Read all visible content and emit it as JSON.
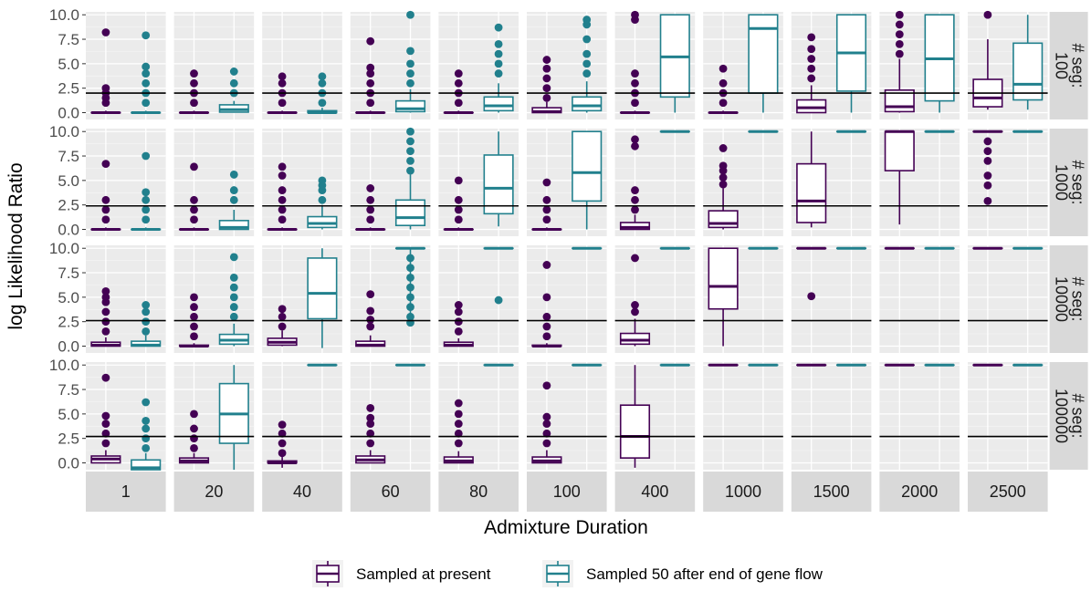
{
  "chart_data": {
    "type": "boxplot",
    "xlabel": "Admixture Duration",
    "ylabel": "log Likelihood Ratio",
    "ylim": [
      -0.7,
      10.3
    ],
    "yticks": [
      "0.0",
      "2.5",
      "5.0",
      "7.5",
      "10.0"
    ],
    "ytick_values": [
      0,
      2.5,
      5,
      7.5,
      10
    ],
    "panels_x": [
      "1",
      "20",
      "40",
      "60",
      "80",
      "100",
      "400",
      "1000",
      "1500",
      "2000",
      "2500"
    ],
    "panels_y": [
      "# seg:\n100",
      "# seg:\n1000",
      "# seg:\n10000",
      "# seg:\n100000"
    ],
    "grid": true,
    "legend_position": "bottom",
    "series": [
      {
        "name": "Sampled at present",
        "color": "#440154"
      },
      {
        "name": "Sampled 50 after end of gene flow",
        "color": "#21808d"
      }
    ],
    "thresholds": [
      2.0,
      2.4,
      2.6,
      2.7
    ],
    "boxes": [
      [
        [
          [
            0,
            0,
            0,
            0,
            0.2,
            [
              1,
              1.5,
              2,
              2.5,
              8.2
            ]
          ],
          [
            0,
            0,
            0,
            0,
            0.2,
            [
              1,
              2,
              3,
              4,
              4.7,
              7.9
            ]
          ]
        ],
        [
          [
            0,
            0,
            0,
            0,
            0.2,
            [
              1,
              2,
              3,
              4
            ]
          ],
          [
            0,
            0.05,
            0.3,
            0.8,
            1.2,
            [
              2,
              3,
              4.2
            ]
          ]
        ],
        [
          [
            0,
            0,
            0,
            0,
            0.2,
            [
              1,
              2,
              3,
              3.7
            ]
          ],
          [
            0,
            0,
            0,
            0.2,
            0.5,
            [
              1,
              2,
              3,
              3.7
            ]
          ]
        ],
        [
          [
            0,
            0,
            0,
            0,
            0.2,
            [
              1,
              2,
              3,
              4,
              4.6,
              7.3
            ]
          ],
          [
            0,
            0.1,
            0.4,
            1.2,
            2.4,
            [
              3,
              4,
              5,
              6.3,
              10
            ]
          ]
        ],
        [
          [
            0,
            0,
            0,
            0,
            0.2,
            [
              1,
              2,
              3,
              4
            ]
          ],
          [
            0,
            0.2,
            0.7,
            1.6,
            3,
            [
              4,
              5,
              6,
              7,
              8.7
            ]
          ]
        ],
        [
          [
            0,
            0,
            0.1,
            0.5,
            1.1,
            [
              1.5,
              2.5,
              3.5,
              4.5,
              5.4
            ]
          ],
          [
            0,
            0.2,
            0.7,
            1.6,
            3.2,
            [
              4,
              5,
              6,
              7.5,
              9,
              9.5
            ]
          ]
        ],
        [
          [
            0,
            0,
            0,
            0,
            0.2,
            [
              1,
              2,
              3,
              4,
              9.5,
              10
            ]
          ],
          [
            0,
            1.6,
            5.7,
            10,
            10,
            []
          ]
        ],
        [
          [
            0,
            0,
            0,
            0,
            0.2,
            [
              1,
              2,
              3,
              4.5
            ]
          ],
          [
            0,
            2,
            8.6,
            10,
            10,
            []
          ]
        ],
        [
          [
            0,
            0,
            0.5,
            1.3,
            2.8,
            [
              3.5,
              4.5,
              5.5,
              6.5,
              7.7
            ]
          ],
          [
            0,
            2.2,
            6.1,
            10,
            10,
            []
          ]
        ],
        [
          [
            0,
            0.1,
            0.6,
            2.3,
            5.5,
            [
              6,
              7,
              8,
              9,
              10
            ]
          ],
          [
            0,
            1.2,
            5.5,
            10,
            10,
            []
          ]
        ],
        [
          [
            0.3,
            0.6,
            1.5,
            3.4,
            7.5,
            [
              10
            ]
          ],
          [
            0.3,
            1.3,
            2.9,
            7.1,
            10,
            []
          ]
        ]
      ],
      [
        [
          [
            0,
            0,
            0,
            0,
            0.2,
            [
              1,
              2,
              3,
              6.7
            ]
          ],
          [
            0,
            0,
            0,
            0,
            0.2,
            [
              1,
              2,
              3,
              3.8,
              7.5
            ]
          ]
        ],
        [
          [
            0,
            0,
            0,
            0,
            0.2,
            [
              1,
              2,
              3,
              6.4
            ]
          ],
          [
            0,
            0,
            0.2,
            0.9,
            2,
            [
              3,
              4,
              5.6
            ]
          ]
        ],
        [
          [
            0,
            0,
            0,
            0,
            0.2,
            [
              1,
              2,
              3,
              4,
              5.5,
              6.4
            ]
          ],
          [
            0,
            0.2,
            0.6,
            1.3,
            2.5,
            [
              3,
              4,
              4.5,
              5
            ]
          ]
        ],
        [
          [
            0,
            0,
            0,
            0,
            0.2,
            [
              1,
              2,
              3,
              4.2
            ]
          ],
          [
            0,
            0.4,
            1.2,
            3,
            5.6,
            [
              6,
              7,
              8,
              9,
              10
            ]
          ]
        ],
        [
          [
            0,
            0,
            0,
            0,
            0.2,
            [
              1,
              2,
              3,
              5
            ]
          ],
          [
            0.3,
            1.6,
            4.2,
            7.6,
            10,
            []
          ]
        ],
        [
          [
            0,
            0,
            0,
            0,
            0.2,
            [
              1,
              2,
              3,
              4.8
            ]
          ],
          [
            0,
            2.9,
            5.8,
            10,
            10,
            []
          ]
        ],
        [
          [
            0,
            0,
            0.2,
            0.7,
            1.5,
            [
              2,
              3,
              4,
              8.5,
              9.2
            ]
          ],
          [
            10,
            10,
            10,
            10,
            10,
            []
          ]
        ],
        [
          [
            0,
            0.2,
            0.6,
            1.9,
            4.2,
            [
              4.6,
              5.3,
              6,
              6.5,
              8.3
            ]
          ],
          [
            10,
            10,
            10,
            10,
            10,
            []
          ]
        ],
        [
          [
            0.2,
            0.7,
            2.9,
            6.7,
            10,
            []
          ],
          [
            10,
            10,
            10,
            10,
            10,
            []
          ]
        ],
        [
          [
            0.5,
            6,
            10,
            10,
            10,
            []
          ],
          [
            10,
            10,
            10,
            10,
            10,
            []
          ]
        ],
        [
          [
            10,
            10,
            10,
            10,
            10,
            [
              2.9,
              4.5,
              5.5,
              7,
              8,
              9
            ]
          ],
          [
            10,
            10,
            10,
            10,
            10,
            []
          ]
        ]
      ],
      [
        [
          [
            0,
            0,
            0.1,
            0.4,
            0.9,
            [
              1.5,
              2.5,
              3.5,
              4.5,
              5,
              5.6
            ]
          ],
          [
            0,
            0,
            0.1,
            0.5,
            1.1,
            [
              1.5,
              2.5,
              3.5,
              4.2
            ]
          ]
        ],
        [
          [
            0,
            0,
            0,
            0.1,
            0.3,
            [
              1,
              2,
              3,
              4,
              5
            ]
          ],
          [
            0,
            0.2,
            0.6,
            1.2,
            2.3,
            [
              3,
              4,
              5,
              6,
              7,
              9.1
            ]
          ]
        ],
        [
          [
            0,
            0.1,
            0.4,
            0.8,
            1.6,
            [
              2,
              3,
              3.8
            ]
          ],
          [
            -0.2,
            2.8,
            5.4,
            9,
            10,
            []
          ]
        ],
        [
          [
            0,
            0,
            0.1,
            0.5,
            1.1,
            [
              2,
              2.7,
              3.6,
              5.3
            ]
          ],
          [
            2.4,
            10,
            10,
            10,
            10,
            [
              2.4,
              3,
              4,
              5,
              6,
              7,
              8,
              9
            ]
          ]
        ],
        [
          [
            0,
            0,
            0.1,
            0.4,
            0.8,
            [
              1.5,
              2.5,
              3.5,
              4.2
            ]
          ],
          [
            10,
            10,
            10,
            10,
            10,
            [
              4.7
            ]
          ]
        ],
        [
          [
            0,
            0,
            0,
            0.1,
            0.3,
            [
              1,
              2,
              3,
              5,
              8.3
            ]
          ],
          [
            10,
            10,
            10,
            10,
            10,
            []
          ]
        ],
        [
          [
            0,
            0.2,
            0.6,
            1.3,
            2.8,
            [
              3.5,
              4.2,
              9
            ]
          ],
          [
            10,
            10,
            10,
            10,
            10,
            []
          ]
        ],
        [
          [
            0,
            3.8,
            6.1,
            10,
            10,
            []
          ],
          [
            10,
            10,
            10,
            10,
            10,
            []
          ]
        ],
        [
          [
            10,
            10,
            10,
            10,
            10,
            [
              5.1
            ]
          ],
          [
            10,
            10,
            10,
            10,
            10,
            []
          ]
        ],
        [
          [
            10,
            10,
            10,
            10,
            10,
            []
          ],
          [
            10,
            10,
            10,
            10,
            10,
            []
          ]
        ],
        [
          [
            10,
            10,
            10,
            10,
            10,
            []
          ],
          [
            10,
            10,
            10,
            10,
            10,
            []
          ]
        ]
      ],
      [
        [
          [
            0,
            0,
            0.4,
            0.7,
            1.3,
            [
              2,
              3,
              4,
              4.8,
              8.7
            ]
          ],
          [
            -0.7,
            -0.7,
            -0.5,
            0.3,
            1,
            [
              1.5,
              2.5,
              3.5,
              4.3,
              6.2
            ]
          ]
        ],
        [
          [
            0,
            0,
            0.2,
            0.5,
            1,
            [
              1.5,
              2.5,
              3.5,
              5
            ]
          ],
          [
            -0.7,
            2,
            5,
            8.1,
            10,
            []
          ]
        ],
        [
          [
            -0.5,
            0,
            0,
            0.2,
            0.6,
            [
              1,
              2,
              3,
              3.9
            ]
          ],
          [
            10,
            10,
            10,
            10,
            10,
            []
          ]
        ],
        [
          [
            0,
            0,
            0.3,
            0.7,
            1.3,
            [
              2,
              3,
              4,
              4.6,
              5.6
            ]
          ],
          [
            10,
            10,
            10,
            10,
            10,
            []
          ]
        ],
        [
          [
            0,
            0,
            0.2,
            0.6,
            1.2,
            [
              2,
              3,
              4,
              5,
              6.1
            ]
          ],
          [
            10,
            10,
            10,
            10,
            10,
            []
          ]
        ],
        [
          [
            0,
            0,
            0.2,
            0.6,
            1.3,
            [
              2,
              3,
              4,
              4.7,
              7.9
            ]
          ],
          [
            10,
            10,
            10,
            10,
            10,
            []
          ]
        ],
        [
          [
            -0.5,
            0.5,
            2.7,
            5.9,
            10,
            []
          ],
          [
            10,
            10,
            10,
            10,
            10,
            []
          ]
        ],
        [
          [
            10,
            10,
            10,
            10,
            10,
            []
          ],
          [
            10,
            10,
            10,
            10,
            10,
            []
          ]
        ],
        [
          [
            10,
            10,
            10,
            10,
            10,
            []
          ],
          [
            10,
            10,
            10,
            10,
            10,
            []
          ]
        ],
        [
          [
            10,
            10,
            10,
            10,
            10,
            []
          ],
          [
            10,
            10,
            10,
            10,
            10,
            []
          ]
        ],
        [
          [
            10,
            10,
            10,
            10,
            10,
            []
          ],
          [
            10,
            10,
            10,
            10,
            10,
            []
          ]
        ]
      ]
    ]
  }
}
